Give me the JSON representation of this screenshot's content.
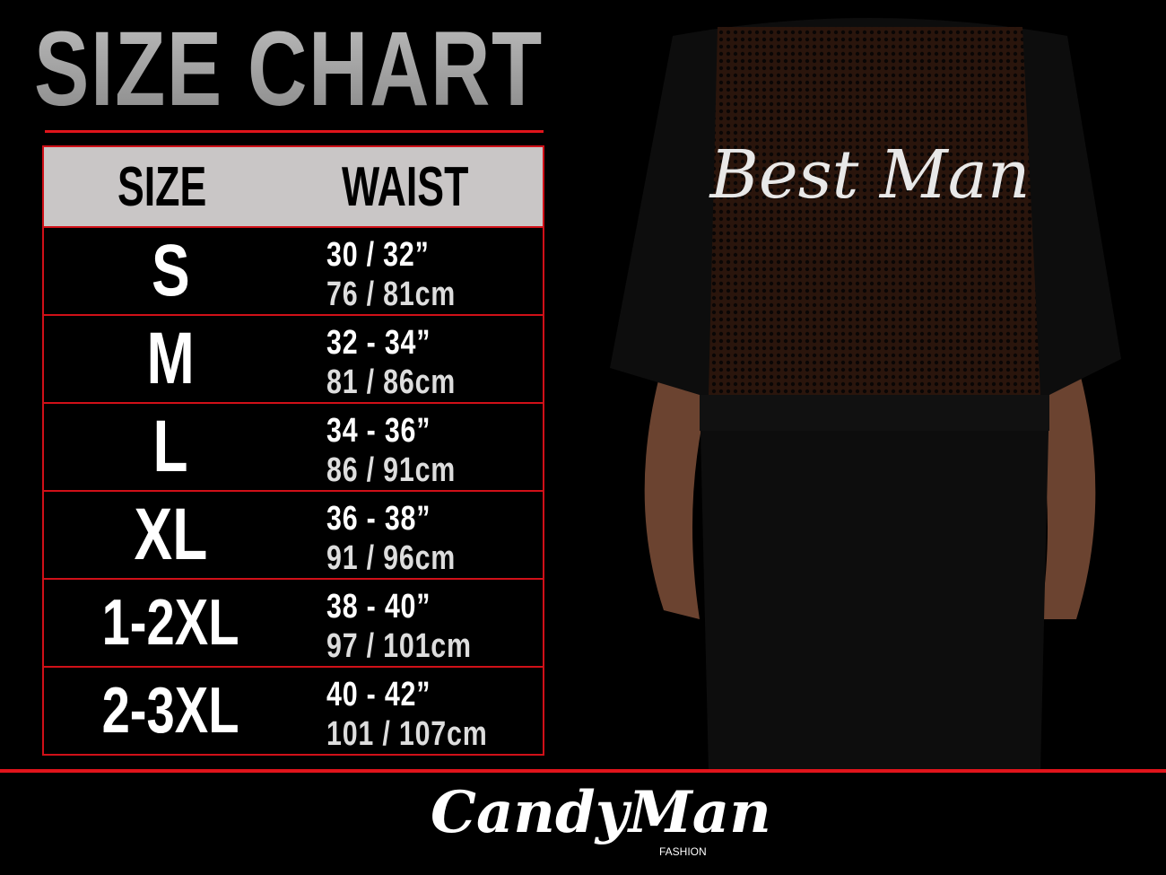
{
  "title": "SIZE CHART",
  "table": {
    "headers": [
      "SIZE",
      "WAIST"
    ],
    "rows": [
      {
        "size": "S",
        "inches": "30 / 32”",
        "cm": "76 / 81cm"
      },
      {
        "size": "M",
        "inches": "32 - 34”",
        "cm": "81 / 86cm"
      },
      {
        "size": "L",
        "inches": "34 - 36”",
        "cm": "86 / 91cm"
      },
      {
        "size": "XL",
        "inches": "36 - 38”",
        "cm": "91 / 96cm"
      },
      {
        "size": "1-2XL",
        "inches": "38 - 40”",
        "cm": "97 / 101cm"
      },
      {
        "size": "2-3XL",
        "inches": "40 - 42”",
        "cm": "101 / 107cm"
      }
    ]
  },
  "garment_print": "Best Man",
  "brand": {
    "name": "CandyMan",
    "sub": "FASHION"
  },
  "colors": {
    "accent": "#e0141b",
    "header_bg": "#c9c6c6",
    "background": "#000000"
  }
}
